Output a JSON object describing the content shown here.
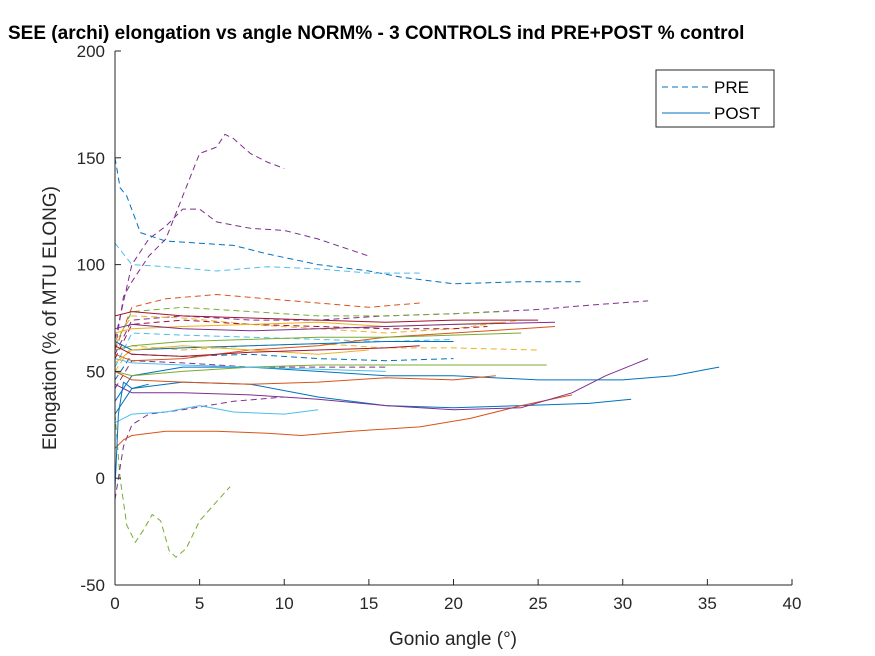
{
  "chart_data": {
    "type": "line",
    "title": "SEE (archi) elongation vs angle NORM% - 3 CONTROLS ind PRE+POST % control",
    "xlabel": "Gonio angle (°)",
    "ylabel": "Elongation (% of MTU ELONG)",
    "xlim": [
      0,
      40
    ],
    "ylim": [
      -50,
      200
    ],
    "xticks": [
      "0",
      "5",
      "10",
      "15",
      "20",
      "25",
      "30",
      "35",
      "40"
    ],
    "yticks": [
      "-50",
      "0",
      "50",
      "100",
      "150",
      "200"
    ],
    "grid": false,
    "legend": {
      "placement": "top-right",
      "entries": [
        {
          "label": "PRE",
          "style": "dashed",
          "color": "#0072bd"
        },
        {
          "label": "POST",
          "style": "solid",
          "color": "#0072bd"
        }
      ]
    },
    "series": [
      {
        "style": "dashed",
        "color": "#7e2f8e",
        "points": [
          [
            0,
            60
          ],
          [
            0.5,
            85
          ],
          [
            1,
            92
          ],
          [
            2,
            104
          ],
          [
            3,
            112
          ],
          [
            4,
            132
          ],
          [
            5,
            152
          ],
          [
            6,
            155
          ],
          [
            6.5,
            161
          ],
          [
            7,
            159
          ],
          [
            8,
            152
          ],
          [
            9,
            148
          ],
          [
            10,
            145
          ]
        ]
      },
      {
        "style": "dashed",
        "color": "#7e2f8e",
        "points": [
          [
            0,
            65
          ],
          [
            1,
            100
          ],
          [
            2,
            112
          ],
          [
            3,
            118
          ],
          [
            4,
            126
          ],
          [
            5,
            126
          ],
          [
            6,
            120
          ],
          [
            8,
            117
          ],
          [
            10,
            116
          ],
          [
            12,
            112
          ],
          [
            15,
            104
          ]
        ]
      },
      {
        "style": "dashed",
        "color": "#0072bd",
        "points": [
          [
            0,
            150
          ],
          [
            0.3,
            136
          ],
          [
            0.7,
            132
          ],
          [
            1.5,
            115
          ],
          [
            3,
            111
          ],
          [
            5,
            110
          ],
          [
            7,
            109
          ],
          [
            9,
            105
          ],
          [
            12,
            100
          ],
          [
            15,
            97
          ],
          [
            17,
            94
          ],
          [
            20,
            91
          ],
          [
            24,
            92
          ],
          [
            27.5,
            92
          ]
        ]
      },
      {
        "style": "dashed",
        "color": "#4dbeee",
        "points": [
          [
            0,
            110
          ],
          [
            1,
            100
          ],
          [
            3,
            99
          ],
          [
            6,
            97
          ],
          [
            9,
            99
          ],
          [
            12,
            98
          ],
          [
            15,
            96
          ],
          [
            18,
            96
          ]
        ]
      },
      {
        "style": "dashed",
        "color": "#d95319",
        "points": [
          [
            0,
            60
          ],
          [
            1,
            80
          ],
          [
            3,
            84
          ],
          [
            6,
            86
          ],
          [
            9,
            84
          ],
          [
            12,
            82
          ],
          [
            15,
            80
          ],
          [
            18,
            82
          ]
        ]
      },
      {
        "style": "dashed",
        "color": "#7e2f8e",
        "points": [
          [
            0,
            58
          ],
          [
            1,
            74
          ],
          [
            4,
            76
          ],
          [
            8,
            74
          ],
          [
            12,
            74
          ],
          [
            16,
            76
          ],
          [
            20,
            77
          ],
          [
            25,
            79
          ],
          [
            28,
            81
          ],
          [
            31.5,
            83
          ]
        ]
      },
      {
        "style": "dashed",
        "color": "#77ac30",
        "points": [
          [
            0,
            62
          ],
          [
            1,
            78
          ],
          [
            4,
            80
          ],
          [
            8,
            78
          ],
          [
            12,
            76
          ],
          [
            16,
            76
          ],
          [
            20,
            77
          ],
          [
            23,
            78
          ]
        ]
      },
      {
        "style": "dashed",
        "color": "#edb120",
        "points": [
          [
            0,
            64
          ],
          [
            1,
            76
          ],
          [
            4,
            75
          ],
          [
            8,
            72
          ],
          [
            12,
            70
          ],
          [
            16,
            68
          ],
          [
            20,
            70
          ],
          [
            24,
            74
          ]
        ]
      },
      {
        "style": "dashed",
        "color": "#a2142f",
        "points": [
          [
            0,
            56
          ],
          [
            1,
            72
          ],
          [
            4,
            74
          ],
          [
            8,
            72
          ],
          [
            12,
            71
          ],
          [
            16,
            70
          ],
          [
            20,
            70
          ],
          [
            22,
            71
          ]
        ]
      },
      {
        "style": "dashed",
        "color": "#4dbeee",
        "points": [
          [
            0,
            52
          ],
          [
            1,
            68
          ],
          [
            4,
            67
          ],
          [
            8,
            66
          ],
          [
            12,
            65
          ],
          [
            16,
            64
          ],
          [
            20,
            65
          ]
        ]
      },
      {
        "style": "dashed",
        "color": "#edb120",
        "points": [
          [
            0,
            50
          ],
          [
            1,
            62
          ],
          [
            4,
            60
          ],
          [
            8,
            62
          ],
          [
            12,
            63
          ],
          [
            16,
            61
          ],
          [
            20,
            61
          ],
          [
            25,
            60
          ]
        ]
      },
      {
        "style": "dashed",
        "color": "#0072bd",
        "points": [
          [
            0,
            46
          ],
          [
            1,
            58
          ],
          [
            4,
            57
          ],
          [
            8,
            58
          ],
          [
            12,
            56
          ],
          [
            16,
            55
          ],
          [
            20,
            56
          ]
        ]
      },
      {
        "style": "dashed",
        "color": "#7e2f8e",
        "points": [
          [
            0,
            42
          ],
          [
            1,
            55
          ],
          [
            4,
            54
          ],
          [
            8,
            52
          ],
          [
            12,
            52
          ],
          [
            16,
            52
          ]
        ]
      },
      {
        "style": "dashed",
        "color": "#77ac30",
        "points": [
          [
            0,
            30
          ],
          [
            0.3,
            0
          ],
          [
            0.7,
            -22
          ],
          [
            1.2,
            -30
          ],
          [
            1.7,
            -24
          ],
          [
            2.2,
            -17
          ],
          [
            2.7,
            -20
          ],
          [
            3.2,
            -34
          ],
          [
            3.6,
            -37
          ],
          [
            4.2,
            -33
          ],
          [
            5,
            -20
          ],
          [
            6,
            -11
          ],
          [
            6.8,
            -4
          ]
        ]
      },
      {
        "style": "dashed",
        "color": "#7e2f8e",
        "points": [
          [
            0,
            -10
          ],
          [
            0.5,
            15
          ],
          [
            1,
            25
          ],
          [
            2,
            30
          ],
          [
            4,
            32
          ],
          [
            7,
            36
          ],
          [
            10,
            38
          ]
        ]
      },
      {
        "style": "solid",
        "color": "#0072bd",
        "points": [
          [
            0,
            30
          ],
          [
            1,
            42
          ],
          [
            4,
            45
          ],
          [
            8,
            44
          ],
          [
            12,
            38
          ],
          [
            16,
            34
          ],
          [
            20,
            33
          ],
          [
            24,
            34
          ],
          [
            28,
            35
          ],
          [
            30.5,
            37
          ]
        ]
      },
      {
        "style": "solid",
        "color": "#0072bd",
        "points": [
          [
            0,
            36
          ],
          [
            1,
            48
          ],
          [
            4,
            52
          ],
          [
            8,
            52
          ],
          [
            12,
            50
          ],
          [
            16,
            48
          ],
          [
            20,
            48
          ],
          [
            25,
            46
          ],
          [
            30,
            46
          ],
          [
            33,
            48
          ],
          [
            35,
            51
          ],
          [
            35.7,
            52
          ]
        ]
      },
      {
        "style": "solid",
        "color": "#d95319",
        "points": [
          [
            0,
            14
          ],
          [
            0.5,
            18
          ],
          [
            1,
            20
          ],
          [
            3,
            22
          ],
          [
            6,
            22
          ],
          [
            9,
            21
          ],
          [
            11,
            20
          ],
          [
            14,
            22
          ],
          [
            18,
            24
          ],
          [
            21,
            28
          ],
          [
            24,
            34
          ],
          [
            27,
            39
          ]
        ]
      },
      {
        "style": "solid",
        "color": "#4dbeee",
        "points": [
          [
            0,
            26
          ],
          [
            1,
            30
          ],
          [
            3,
            31
          ],
          [
            5,
            34
          ],
          [
            7,
            31
          ],
          [
            10,
            30
          ],
          [
            12,
            32
          ]
        ]
      },
      {
        "style": "solid",
        "color": "#7e2f8e",
        "points": [
          [
            0,
            44
          ],
          [
            1,
            40
          ],
          [
            4,
            40
          ],
          [
            8,
            39
          ],
          [
            12,
            37
          ],
          [
            16,
            34
          ],
          [
            20,
            32
          ],
          [
            24,
            33
          ],
          [
            27,
            40
          ],
          [
            29,
            48
          ],
          [
            31.5,
            56
          ]
        ]
      },
      {
        "style": "solid",
        "color": "#d95319",
        "points": [
          [
            0,
            58
          ],
          [
            1,
            55
          ],
          [
            4,
            56
          ],
          [
            8,
            60
          ],
          [
            12,
            62
          ],
          [
            16,
            66
          ],
          [
            20,
            68
          ],
          [
            24,
            70
          ],
          [
            26,
            71
          ]
        ]
      },
      {
        "style": "solid",
        "color": "#77ac30",
        "points": [
          [
            0,
            60
          ],
          [
            1,
            62
          ],
          [
            4,
            64
          ],
          [
            8,
            65
          ],
          [
            12,
            66
          ],
          [
            16,
            66
          ],
          [
            20,
            67
          ],
          [
            24,
            68
          ]
        ]
      },
      {
        "style": "solid",
        "color": "#edb120",
        "points": [
          [
            0,
            68
          ],
          [
            1,
            70
          ],
          [
            4,
            71
          ],
          [
            8,
            72
          ],
          [
            12,
            73
          ],
          [
            16,
            71
          ],
          [
            20,
            72
          ],
          [
            23,
            73
          ]
        ]
      },
      {
        "style": "solid",
        "color": "#a2142f",
        "points": [
          [
            0,
            76
          ],
          [
            1,
            78
          ],
          [
            4,
            76
          ],
          [
            8,
            75
          ],
          [
            12,
            74
          ],
          [
            16,
            73
          ],
          [
            20,
            74
          ],
          [
            25,
            74
          ]
        ]
      },
      {
        "style": "solid",
        "color": "#7e2f8e",
        "points": [
          [
            0,
            70
          ],
          [
            1,
            72
          ],
          [
            4,
            70
          ],
          [
            8,
            69
          ],
          [
            12,
            70
          ],
          [
            16,
            71
          ],
          [
            20,
            72
          ],
          [
            26,
            73
          ]
        ]
      },
      {
        "style": "solid",
        "color": "#0072bd",
        "points": [
          [
            0,
            64
          ],
          [
            1,
            60
          ],
          [
            4,
            61
          ],
          [
            8,
            62
          ],
          [
            12,
            63
          ],
          [
            16,
            64
          ],
          [
            20,
            64
          ]
        ]
      },
      {
        "style": "solid",
        "color": "#77ac30",
        "points": [
          [
            0,
            50
          ],
          [
            1,
            48
          ],
          [
            4,
            50
          ],
          [
            8,
            52
          ],
          [
            12,
            53
          ],
          [
            16,
            53
          ],
          [
            20,
            53
          ],
          [
            25.5,
            53
          ]
        ]
      },
      {
        "style": "solid",
        "color": "#4dbeee",
        "points": [
          [
            0,
            56
          ],
          [
            1,
            54
          ],
          [
            4,
            53
          ],
          [
            8,
            52
          ],
          [
            12,
            51
          ],
          [
            16,
            50
          ]
        ]
      },
      {
        "style": "solid",
        "color": "#d95319",
        "points": [
          [
            0,
            50
          ],
          [
            1,
            46
          ],
          [
            4,
            45
          ],
          [
            8,
            44
          ],
          [
            12,
            45
          ],
          [
            16,
            47
          ],
          [
            20,
            46
          ],
          [
            22.5,
            48
          ]
        ]
      },
      {
        "style": "solid",
        "color": "#edb120",
        "points": [
          [
            0,
            54
          ],
          [
            1,
            60
          ],
          [
            4,
            62
          ],
          [
            8,
            60
          ],
          [
            12,
            58
          ],
          [
            15,
            60
          ]
        ]
      },
      {
        "style": "solid",
        "color": "#a2142f",
        "points": [
          [
            0,
            62
          ],
          [
            1,
            58
          ],
          [
            4,
            57
          ],
          [
            8,
            59
          ],
          [
            12,
            60
          ],
          [
            16,
            61
          ],
          [
            18,
            62
          ]
        ]
      },
      {
        "style": "solid",
        "color": "#0072bd",
        "points": [
          [
            0,
            -5
          ],
          [
            0.2,
            30
          ],
          [
            0.5,
            45
          ],
          [
            1,
            42
          ],
          [
            2,
            44
          ]
        ]
      }
    ]
  }
}
